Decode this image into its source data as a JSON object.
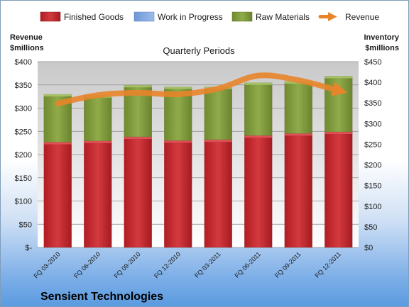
{
  "chart_data": {
    "type": "bar",
    "title": "Quarterly Periods",
    "company": "Sensient Technologies",
    "left_axis_title_line1": "Revenue",
    "left_axis_title_line2": "$millions",
    "right_axis_title_line1": "Inventory",
    "right_axis_title_line2": "$millions",
    "categories": [
      "FQ 03-2010",
      "FQ 06-2010",
      "FQ 09-2010",
      "FQ 12-2010",
      "FQ 03-2011",
      "FQ 06-2011",
      "FQ 09-2011",
      "FQ 12-2011"
    ],
    "series": [
      {
        "name": "Finished Goods",
        "type": "stacked-bar",
        "axis": "right",
        "color": "#c0272d",
        "values": [
          255,
          258,
          268,
          259,
          261,
          271,
          276,
          280
        ]
      },
      {
        "name": "Work in Progress",
        "type": "stacked-bar",
        "axis": "right",
        "color": "#7ea6e0",
        "values": [
          0,
          0,
          0,
          0,
          0,
          0,
          0,
          0
        ]
      },
      {
        "name": "Raw Materials",
        "type": "stacked-bar",
        "axis": "right",
        "color": "#7f9a3c",
        "values": [
          116,
          110,
          125,
          130,
          128,
          128,
          126,
          135
        ]
      },
      {
        "name": "Revenue",
        "type": "line",
        "axis": "left",
        "color": "#e8842a",
        "values": [
          310,
          328,
          333,
          330,
          342,
          370,
          360,
          338
        ]
      }
    ],
    "left_ylim": [
      0,
      400
    ],
    "left_ticks": [
      "$-",
      "$50",
      "$100",
      "$150",
      "$200",
      "$250",
      "$300",
      "$350",
      "$400"
    ],
    "right_ylim": [
      0,
      450
    ],
    "right_ticks": [
      "$0",
      "$50",
      "$100",
      "$150",
      "$200",
      "$250",
      "$300",
      "$350",
      "$400",
      "$450"
    ],
    "grid": true,
    "legend_position": "top"
  }
}
